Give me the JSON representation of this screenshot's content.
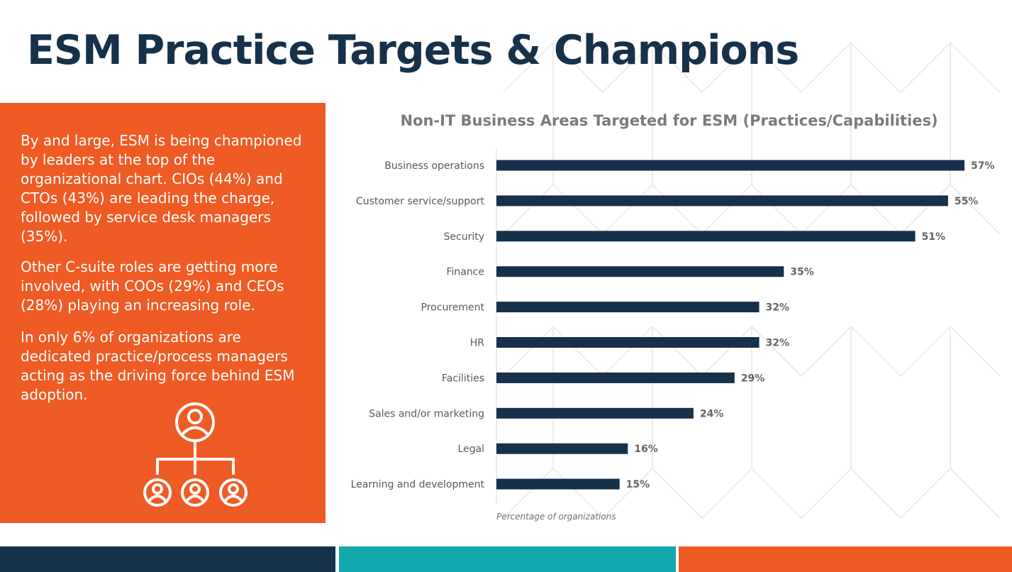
{
  "slide": {
    "title": "ESM Practice Targets & Champions",
    "panel_paragraphs": [
      "By and large, ESM is being championed by leaders at the top of the organizational chart. CIOs (44%) and CTOs (43%) are leading the charge, followed by service desk managers (35%).",
      "Other C-suite roles are getting more involved, with COOs (29%) and CEOs (28%) playing an increasing role.",
      "In only 6% of organizations are dedicated practice/process managers acting as the driving force behind ESM adoption."
    ],
    "icon": "org-chart-icon"
  },
  "colors": {
    "navy": "#16314a",
    "orange": "#ef5b24",
    "teal": "#12a8ad",
    "bar": "#16314a",
    "label_text": "#595959",
    "value_text": "#666666",
    "title_gray": "#7b7b7b"
  },
  "chart_data": {
    "type": "bar",
    "orientation": "horizontal",
    "title": "Non-IT Business Areas Targeted for ESM (Practices/Capabilities)",
    "categories": [
      "Business operations",
      "Customer service/support",
      "Security",
      "Finance",
      "Procurement",
      "HR",
      "Facilities",
      "Sales and/or marketing",
      "Legal",
      "Learning and development"
    ],
    "values": [
      57,
      55,
      51,
      35,
      32,
      32,
      29,
      24,
      16,
      15
    ],
    "value_labels": [
      "57%",
      "55%",
      "51%",
      "35%",
      "32%",
      "32%",
      "29%",
      "24%",
      "16%",
      "15%"
    ],
    "xlabel": "Percentage of organizations",
    "xlim": [
      0,
      57
    ],
    "grid": false,
    "legend": "none"
  }
}
